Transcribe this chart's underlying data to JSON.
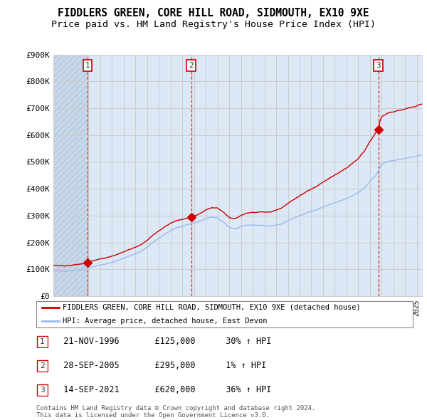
{
  "title": "FIDDLERS GREEN, CORE HILL ROAD, SIDMOUTH, EX10 9XE",
  "subtitle": "Price paid vs. HM Land Registry's House Price Index (HPI)",
  "ylim": [
    0,
    900000
  ],
  "yticks": [
    0,
    100000,
    200000,
    300000,
    400000,
    500000,
    600000,
    700000,
    800000,
    900000
  ],
  "ytick_labels": [
    "£0",
    "£100K",
    "£200K",
    "£300K",
    "£400K",
    "£500K",
    "£600K",
    "£700K",
    "£800K",
    "£900K"
  ],
  "xlim_start": 1994.0,
  "xlim_end": 2025.5,
  "sale_dates": [
    1996.9,
    2005.75,
    2021.71
  ],
  "sale_prices": [
    125000,
    295000,
    620000
  ],
  "sale_labels": [
    "1",
    "2",
    "3"
  ],
  "sale_label_color": "#cc0000",
  "hpi_line_color": "#99bbee",
  "price_line_color": "#cc0000",
  "legend_label_red": "FIDDLERS GREEN, CORE HILL ROAD, SIDMOUTH, EX10 9XE (detached house)",
  "legend_label_blue": "HPI: Average price, detached house, East Devon",
  "table_entries": [
    {
      "num": "1",
      "date": "21-NOV-1996",
      "price": "£125,000",
      "change": "30% ↑ HPI"
    },
    {
      "num": "2",
      "date": "28-SEP-2005",
      "price": "£295,000",
      "change": "1% ↑ HPI"
    },
    {
      "num": "3",
      "date": "14-SEP-2021",
      "price": "£620,000",
      "change": "36% ↑ HPI"
    }
  ],
  "footer": "Contains HM Land Registry data © Crown copyright and database right 2024.\nThis data is licensed under the Open Government Licence v3.0.",
  "grid_color": "#cccccc",
  "bg_color": "#dce8f5",
  "title_fontsize": 10.5,
  "subtitle_fontsize": 9.5,
  "tick_fontsize": 8
}
